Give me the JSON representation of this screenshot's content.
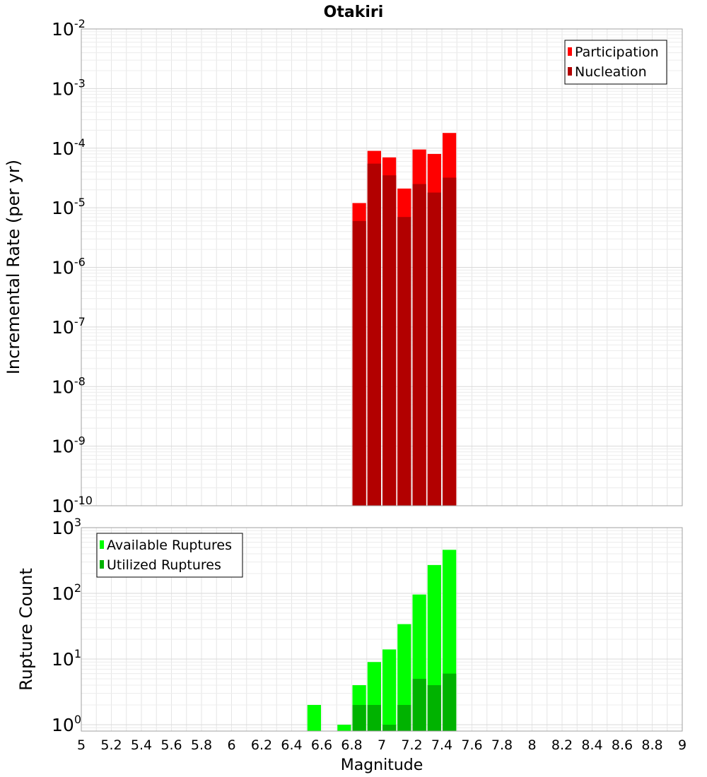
{
  "chart_data": [
    {
      "type": "bar",
      "title": "Otakiri",
      "xlabel": "",
      "ylabel": "Incremental Rate (per yr)",
      "yscale": "log",
      "ylim": [
        1e-10,
        0.01
      ],
      "xlim": [
        5,
        9
      ],
      "grid": true,
      "legend_position": "top-right",
      "y_ticks": [
        {
          "base": "10",
          "exp": "-10"
        },
        {
          "base": "10",
          "exp": "-9"
        },
        {
          "base": "10",
          "exp": "-8"
        },
        {
          "base": "10",
          "exp": "-7"
        },
        {
          "base": "10",
          "exp": "-6"
        },
        {
          "base": "10",
          "exp": "-5"
        },
        {
          "base": "10",
          "exp": "-4"
        },
        {
          "base": "10",
          "exp": "-3"
        },
        {
          "base": "10",
          "exp": "-2"
        }
      ],
      "x": [
        6.85,
        6.95,
        7.05,
        7.15,
        7.25,
        7.35,
        7.45
      ],
      "series": [
        {
          "name": "Participation",
          "color": "#ff0000",
          "values": [
            1.2e-05,
            9e-05,
            7e-05,
            2.1e-05,
            9.5e-05,
            8e-05,
            0.00018
          ]
        },
        {
          "name": "Nucleation",
          "color": "#b20000",
          "values": [
            6e-06,
            5.5e-05,
            3.5e-05,
            7e-06,
            2.5e-05,
            1.8e-05,
            3.2e-05
          ]
        }
      ]
    },
    {
      "type": "bar",
      "title": "",
      "xlabel": "Magnitude",
      "ylabel": "Rupture Count",
      "yscale": "log",
      "ylim": [
        0.8,
        1000
      ],
      "xlim": [
        5,
        9
      ],
      "grid": true,
      "legend_position": "top-left",
      "y_ticks": [
        {
          "base": "10",
          "exp": "0"
        },
        {
          "base": "10",
          "exp": "1"
        },
        {
          "base": "10",
          "exp": "2"
        },
        {
          "base": "10",
          "exp": "3"
        }
      ],
      "x_ticks": [
        "5",
        "5.2",
        "5.4",
        "5.6",
        "5.8",
        "6",
        "6.2",
        "6.4",
        "6.6",
        "6.8",
        "7",
        "7.2",
        "7.4",
        "7.6",
        "7.8",
        "8",
        "8.2",
        "8.4",
        "8.6",
        "8.8",
        "9"
      ],
      "x": [
        6.55,
        6.75,
        6.85,
        6.95,
        7.05,
        7.15,
        7.25,
        7.35,
        7.45
      ],
      "series": [
        {
          "name": "Available Ruptures",
          "color": "#00ff00",
          "values": [
            2,
            1,
            4,
            9,
            14,
            34,
            96,
            270,
            460
          ]
        },
        {
          "name": "Utilized Ruptures",
          "color": "#00b200",
          "values": [
            null,
            null,
            2,
            2,
            1,
            2,
            5,
            4,
            6
          ]
        }
      ]
    }
  ]
}
